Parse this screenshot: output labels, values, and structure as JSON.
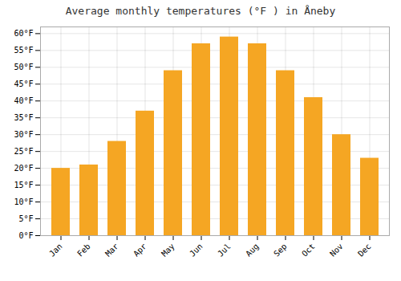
{
  "chart_data": {
    "type": "bar",
    "title": "Average monthly temperatures (°F ) in Åneby",
    "categories": [
      "Jan",
      "Feb",
      "Mar",
      "Apr",
      "May",
      "Jun",
      "Jul",
      "Aug",
      "Sep",
      "Oct",
      "Nov",
      "Dec"
    ],
    "values": [
      20,
      21,
      28,
      37,
      49,
      57,
      59,
      57,
      49,
      41,
      30,
      23
    ],
    "color": "#F5A623",
    "ylim": [
      0,
      62
    ],
    "yticks": [
      {
        "value": 0,
        "label": "0°F"
      },
      {
        "value": 5,
        "label": "5°F"
      },
      {
        "value": 10,
        "label": "10°F"
      },
      {
        "value": 15,
        "label": "15°F"
      },
      {
        "value": 20,
        "label": "20°F"
      },
      {
        "value": 25,
        "label": "25°F"
      },
      {
        "value": 30,
        "label": "30°F"
      },
      {
        "value": 35,
        "label": "35°F"
      },
      {
        "value": 40,
        "label": "40°F"
      },
      {
        "value": 45,
        "label": "45°F"
      },
      {
        "value": 50,
        "label": "50°F"
      },
      {
        "value": 55,
        "label": "55°F"
      },
      {
        "value": 60,
        "label": "60°F"
      }
    ],
    "grid": true
  }
}
